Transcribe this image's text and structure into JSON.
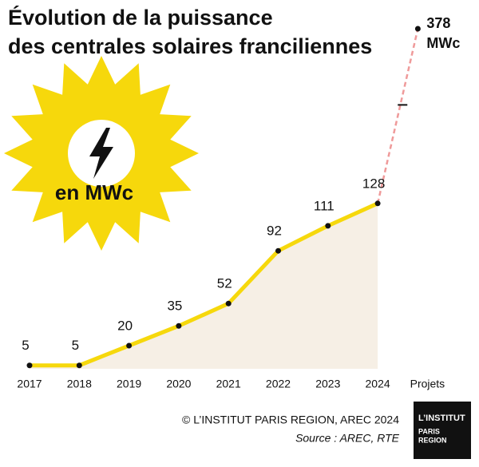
{
  "chart_data": {
    "type": "line",
    "title": [
      "Évolution de la puissance",
      "des centrales solaires franciliennes"
    ],
    "badge": "en MWc",
    "categories": [
      "2017",
      "2018",
      "2019",
      "2020",
      "2021",
      "2022",
      "2023",
      "2024",
      "Projets"
    ],
    "series": [
      {
        "name": "Puissance",
        "color": "#f6d80c",
        "values": [
          5,
          5,
          20,
          35,
          52,
          92,
          111,
          128,
          null
        ]
      },
      {
        "name": "Projets",
        "color": "#ef9a9a",
        "dashed": true,
        "values": [
          null,
          null,
          null,
          null,
          null,
          null,
          null,
          128,
          378
        ],
        "unit": "MWc"
      }
    ],
    "ylim": [
      0,
      140
    ],
    "axis_break": true,
    "area_color": "#f6efe5",
    "credit": "© L’INSTITUT PARIS REGION, AREC 2024",
    "source": "Source : AREC, RTE",
    "logo": [
      "L’INSTITUT",
      "PARIS",
      "REGION"
    ]
  }
}
